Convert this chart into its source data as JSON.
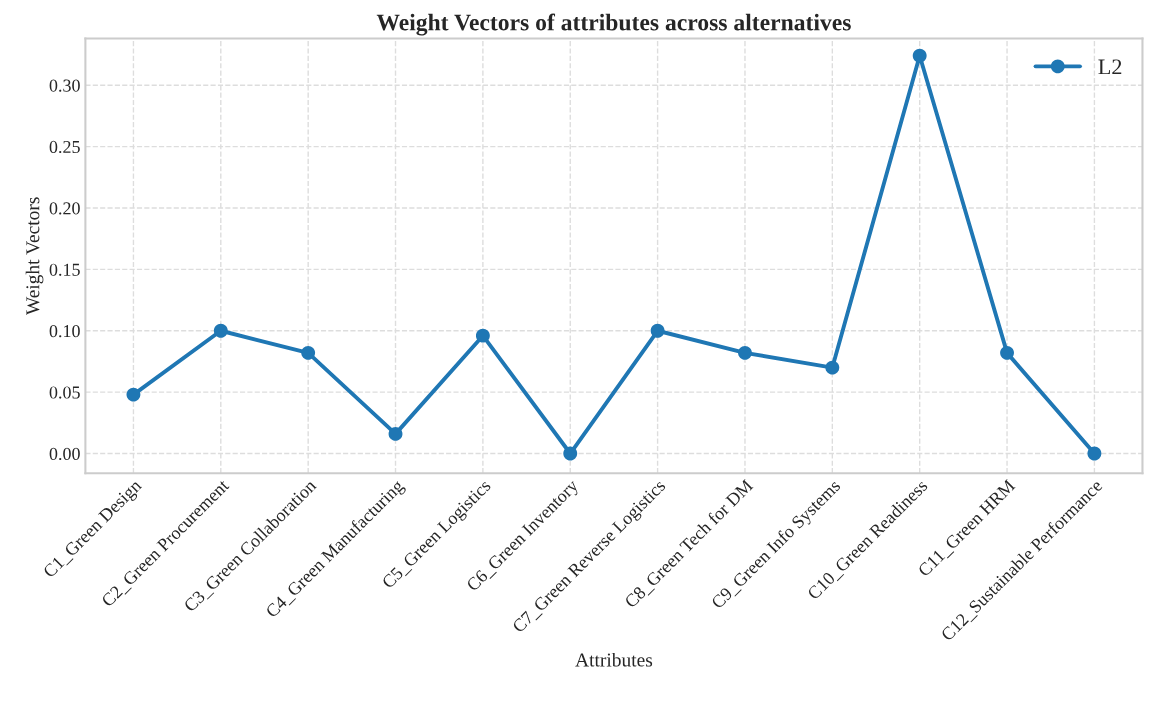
{
  "chart_data": {
    "type": "line",
    "title": "Weight Vectors of attributes across alternatives",
    "xlabel": "Attributes",
    "ylabel": "Weight Vectors",
    "categories": [
      "C1_Green Design",
      "C2_Green Procurement",
      "C3_Green Collaboration",
      "C4_Green Manufacturing",
      "C5_Green Logistics",
      "C6_Green Inventory",
      "C7_Green Reverse Logistics",
      "C8_Green Tech for DM",
      "C9_Green Info Systems",
      "C10_Green Readiness",
      "C11_Green HRM",
      "C12_Sustainable Performance"
    ],
    "series": [
      {
        "name": "L2",
        "color": "#1f77b4",
        "values": [
          0.048,
          0.1,
          0.082,
          0.016,
          0.096,
          0.0,
          0.1,
          0.082,
          0.07,
          0.324,
          0.082,
          0.0
        ]
      }
    ],
    "ylim": [
      -0.016,
      0.338
    ],
    "yticks": [
      {
        "value": 0,
        "label": "0.00"
      },
      {
        "value": 0.05,
        "label": "0.05"
      },
      {
        "value": 0.1,
        "label": "0.10"
      },
      {
        "value": 0.15,
        "label": "0.15"
      },
      {
        "value": 0.2,
        "label": "0.20"
      },
      {
        "value": 0.25,
        "label": "0.25"
      },
      {
        "value": 0.3,
        "label": "0.30"
      }
    ],
    "grid": true,
    "legend": "top right",
    "marker": "circle",
    "line_style": "solid"
  }
}
